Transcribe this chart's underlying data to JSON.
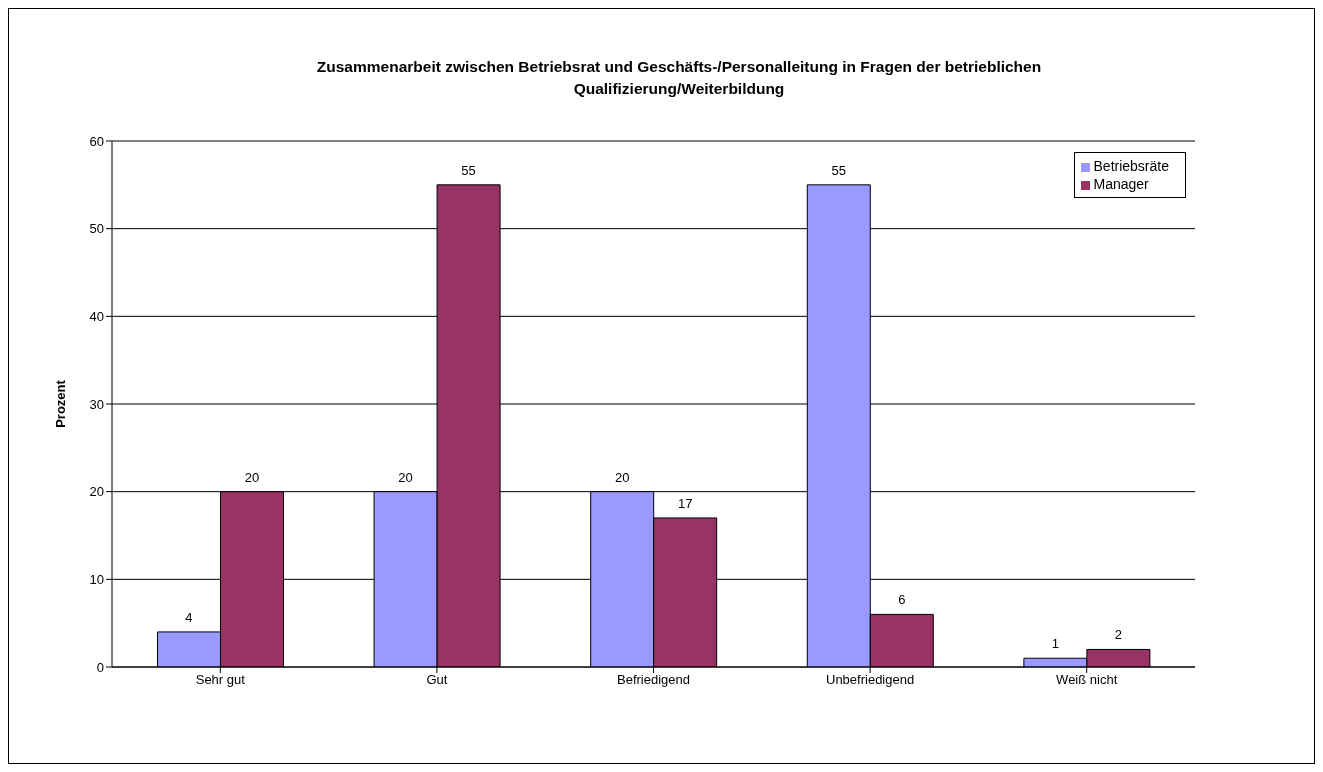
{
  "chart_data": {
    "type": "bar",
    "title": "Zusammenarbeit zwischen Betriebsrat und Geschäfts-/Personalleitung in Fragen der betrieblichen Qualifizierung/Weiterbildung",
    "ylabel": "Prozent",
    "categories": [
      "Sehr gut",
      "Gut",
      "Befriedigend",
      "Unbefriedigend",
      "Weiß nicht"
    ],
    "series": [
      {
        "name": "Betriebsräte",
        "color": "#9999ff",
        "values": [
          4,
          20,
          20,
          55,
          1
        ]
      },
      {
        "name": "Manager",
        "color": "#993366",
        "values": [
          20,
          55,
          17,
          6,
          2
        ]
      }
    ],
    "ylim": [
      0,
      60
    ],
    "yticks": [
      0,
      10,
      20,
      30,
      40,
      50,
      60
    ],
    "grid": "y",
    "legend": "top right",
    "data_labels": true
  }
}
